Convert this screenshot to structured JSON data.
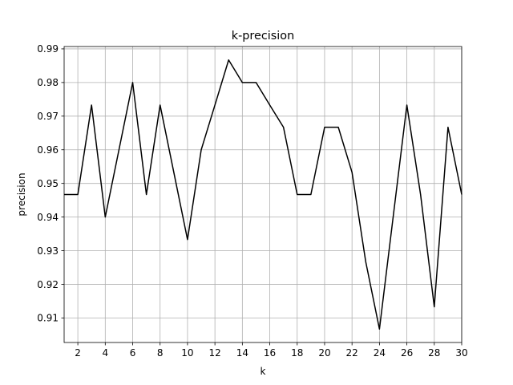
{
  "chart_data": {
    "type": "line",
    "title": "k-precision",
    "xlabel": "k",
    "ylabel": "precision",
    "xlim": [
      1,
      30
    ],
    "ylim": [
      0.9027,
      0.9907
    ],
    "x_ticks": [
      2,
      4,
      6,
      8,
      10,
      12,
      14,
      16,
      18,
      20,
      22,
      24,
      26,
      28,
      30
    ],
    "y_ticks": [
      0.91,
      0.92,
      0.93,
      0.94,
      0.95,
      0.96,
      0.97,
      0.98,
      0.99
    ],
    "y_tick_labels": [
      "0.91",
      "0.92",
      "0.93",
      "0.94",
      "0.95",
      "0.96",
      "0.97",
      "0.98",
      "0.99"
    ],
    "grid": true,
    "line_color": "#000000",
    "x": [
      1,
      2,
      3,
      4,
      5,
      6,
      7,
      8,
      9,
      10,
      11,
      12,
      13,
      14,
      15,
      16,
      17,
      18,
      19,
      20,
      21,
      22,
      23,
      24,
      25,
      26,
      27,
      28,
      29,
      30
    ],
    "y": [
      0.9467,
      0.9467,
      0.9733,
      0.94,
      0.96,
      0.98,
      0.9467,
      0.9733,
      0.9533,
      0.9333,
      0.96,
      0.9733,
      0.9867,
      0.98,
      0.98,
      0.9733,
      0.9667,
      0.9467,
      0.9467,
      0.9667,
      0.9667,
      0.9533,
      0.9267,
      0.9067,
      0.94,
      0.9733,
      0.9467,
      0.9133,
      0.9667,
      0.9467
    ]
  }
}
